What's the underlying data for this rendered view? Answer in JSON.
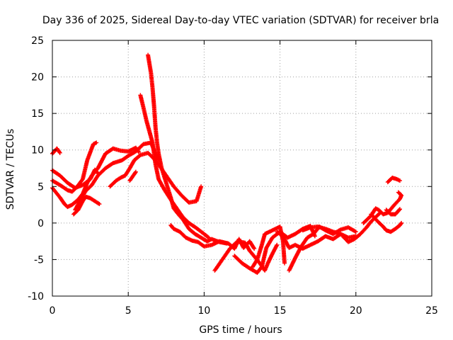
{
  "chart_data": {
    "type": "scatter",
    "title": "Day 336 of 2025, Sidereal Day-to-day VTEC variation (SDTVAR) for receiver brla",
    "xlabel": "GPS time / hours",
    "ylabel": "SDTVAR / TECUs",
    "xlim": [
      0,
      25
    ],
    "ylim": [
      -10,
      25
    ],
    "xticks": [
      0,
      5,
      10,
      15,
      20,
      25
    ],
    "yticks": [
      -10,
      -5,
      0,
      5,
      10,
      15,
      20,
      25
    ],
    "grid": true,
    "marker": "plus",
    "color": "#ff0000",
    "series": [
      {
        "name": "track-1",
        "points": [
          [
            0.0,
            9.5
          ],
          [
            0.3,
            10.2
          ],
          [
            0.5,
            9.6
          ]
        ]
      },
      {
        "name": "track-2",
        "points": [
          [
            0.0,
            7.2
          ],
          [
            0.5,
            6.5
          ],
          [
            1.0,
            5.5
          ],
          [
            1.5,
            4.8
          ],
          [
            2.0,
            5.2
          ],
          [
            2.5,
            6.0
          ],
          [
            2.8,
            7.3
          ],
          [
            3.0,
            6.8
          ]
        ]
      },
      {
        "name": "track-3",
        "points": [
          [
            0.0,
            5.8
          ],
          [
            0.5,
            5.2
          ],
          [
            1.0,
            4.5
          ],
          [
            1.3,
            4.3
          ],
          [
            1.6,
            4.9
          ],
          [
            2.0,
            6.0
          ],
          [
            2.3,
            8.6
          ],
          [
            2.7,
            10.8
          ],
          [
            2.9,
            11.0
          ]
        ]
      },
      {
        "name": "track-4",
        "points": [
          [
            0.0,
            4.8
          ],
          [
            0.5,
            3.5
          ],
          [
            0.8,
            2.6
          ],
          [
            1.0,
            2.2
          ],
          [
            1.3,
            2.5
          ],
          [
            1.7,
            3.2
          ],
          [
            2.0,
            4.0
          ],
          [
            2.3,
            5.5
          ],
          [
            2.6,
            6.5
          ],
          [
            3.0,
            7.5
          ],
          [
            3.5,
            9.5
          ],
          [
            4.0,
            10.2
          ],
          [
            4.5,
            9.9
          ],
          [
            5.0,
            9.8
          ],
          [
            5.5,
            10.3
          ],
          [
            5.7,
            9.7
          ]
        ]
      },
      {
        "name": "track-5",
        "points": [
          [
            1.4,
            1.2
          ],
          [
            1.7,
            1.8
          ],
          [
            2.0,
            3.0
          ],
          [
            2.2,
            3.6
          ],
          [
            2.5,
            3.4
          ],
          [
            2.8,
            3.0
          ],
          [
            3.1,
            2.6
          ]
        ]
      },
      {
        "name": "track-6",
        "points": [
          [
            1.5,
            1.8
          ],
          [
            1.8,
            3.0
          ],
          [
            2.2,
            4.4
          ],
          [
            2.6,
            5.2
          ],
          [
            3.0,
            6.5
          ],
          [
            3.5,
            7.5
          ],
          [
            4.0,
            8.2
          ],
          [
            4.6,
            8.6
          ],
          [
            5.0,
            9.2
          ],
          [
            5.5,
            9.8
          ],
          [
            6.0,
            10.8
          ],
          [
            6.5,
            11.0
          ],
          [
            6.8,
            9.5
          ],
          [
            7.0,
            8.6
          ]
        ]
      },
      {
        "name": "track-7",
        "points": [
          [
            3.8,
            5.0
          ],
          [
            4.2,
            5.8
          ],
          [
            4.5,
            6.2
          ],
          [
            4.8,
            6.5
          ],
          [
            5.1,
            7.5
          ],
          [
            5.4,
            8.6
          ],
          [
            5.8,
            9.3
          ],
          [
            6.3,
            9.6
          ],
          [
            6.6,
            9.0
          ],
          [
            7.0,
            8.0
          ],
          [
            7.5,
            6.5
          ],
          [
            8.0,
            5.0
          ],
          [
            8.5,
            3.8
          ],
          [
            9.0,
            2.8
          ],
          [
            9.5,
            3.0
          ],
          [
            9.8,
            5.0
          ]
        ]
      },
      {
        "name": "track-8",
        "points": [
          [
            5.1,
            5.8
          ],
          [
            5.3,
            6.4
          ],
          [
            5.5,
            7.0
          ]
        ]
      },
      {
        "name": "track-9",
        "points": [
          [
            5.8,
            17.5
          ],
          [
            6.0,
            15.8
          ],
          [
            6.2,
            14.0
          ],
          [
            6.4,
            12.5
          ],
          [
            6.6,
            11.0
          ],
          [
            6.8,
            8.0
          ],
          [
            7.0,
            6.0
          ],
          [
            7.4,
            4.5
          ],
          [
            7.8,
            3.2
          ],
          [
            8.2,
            2.0
          ],
          [
            8.6,
            0.8
          ],
          [
            9.0,
            0.0
          ],
          [
            9.5,
            -0.7
          ],
          [
            10.0,
            -1.5
          ],
          [
            10.3,
            -2.0
          ]
        ]
      },
      {
        "name": "track-10",
        "points": [
          [
            6.3,
            23.0
          ],
          [
            6.5,
            20.5
          ],
          [
            6.6,
            18.5
          ],
          [
            6.7,
            16.0
          ],
          [
            6.8,
            13.0
          ],
          [
            6.9,
            11.0
          ],
          [
            7.0,
            9.5
          ],
          [
            7.2,
            7.5
          ],
          [
            7.5,
            5.5
          ],
          [
            7.8,
            3.5
          ],
          [
            8.0,
            2.0
          ],
          [
            8.3,
            1.2
          ],
          [
            8.6,
            0.5
          ],
          [
            9.0,
            -0.8
          ],
          [
            9.4,
            -1.5
          ],
          [
            9.8,
            -2.0
          ],
          [
            10.2,
            -2.5
          ],
          [
            10.5,
            -2.2
          ],
          [
            11.0,
            -2.6
          ],
          [
            11.5,
            -2.8
          ]
        ]
      },
      {
        "name": "track-11",
        "points": [
          [
            7.8,
            -0.3
          ],
          [
            8.0,
            -0.8
          ],
          [
            8.4,
            -1.2
          ],
          [
            8.8,
            -2.0
          ],
          [
            9.2,
            -2.4
          ],
          [
            9.6,
            -2.6
          ],
          [
            10.0,
            -3.2
          ],
          [
            10.5,
            -3.0
          ],
          [
            11.0,
            -2.5
          ],
          [
            11.6,
            -2.8
          ],
          [
            12.0,
            -3.5
          ],
          [
            12.3,
            -2.2
          ],
          [
            12.6,
            -3.4
          ],
          [
            13.0,
            -2.5
          ],
          [
            13.3,
            -3.5
          ]
        ]
      },
      {
        "name": "track-12",
        "points": [
          [
            10.7,
            -6.5
          ],
          [
            11.2,
            -5.0
          ],
          [
            11.7,
            -3.5
          ],
          [
            12.2,
            -2.5
          ],
          [
            12.7,
            -2.7
          ],
          [
            13.0,
            -3.8
          ],
          [
            13.4,
            -4.8
          ],
          [
            13.7,
            -5.6
          ],
          [
            14.0,
            -6.5
          ],
          [
            14.2,
            -5.5
          ],
          [
            14.5,
            -4.2
          ],
          [
            14.8,
            -3.0
          ]
        ]
      },
      {
        "name": "track-13",
        "points": [
          [
            12.0,
            -4.5
          ],
          [
            12.5,
            -5.5
          ],
          [
            13.0,
            -6.2
          ],
          [
            13.5,
            -6.8
          ],
          [
            13.8,
            -6.0
          ],
          [
            14.1,
            -3.4
          ],
          [
            14.5,
            -2.0
          ],
          [
            15.0,
            -1.2
          ],
          [
            15.5,
            -2.0
          ],
          [
            16.0,
            -1.5
          ],
          [
            16.5,
            -0.8
          ],
          [
            17.0,
            -0.4
          ],
          [
            17.3,
            -1.8
          ]
        ]
      },
      {
        "name": "track-14",
        "points": [
          [
            13.2,
            -6.0
          ],
          [
            13.5,
            -5.0
          ],
          [
            13.8,
            -3.0
          ],
          [
            14.0,
            -1.5
          ],
          [
            14.5,
            -1.0
          ],
          [
            15.0,
            -0.5
          ],
          [
            15.2,
            -2.5
          ],
          [
            15.3,
            -5.5
          ]
        ]
      },
      {
        "name": "track-15",
        "points": [
          [
            14.8,
            -1.2
          ],
          [
            15.2,
            -1.8
          ],
          [
            15.6,
            -3.4
          ],
          [
            16.0,
            -3.0
          ],
          [
            16.5,
            -3.5
          ],
          [
            17.0,
            -3.0
          ],
          [
            17.5,
            -2.5
          ],
          [
            18.0,
            -1.8
          ],
          [
            18.5,
            -2.2
          ],
          [
            19.0,
            -1.5
          ],
          [
            19.5,
            -2.0
          ],
          [
            20.0,
            -1.8
          ]
        ]
      },
      {
        "name": "track-16",
        "points": [
          [
            15.6,
            -6.5
          ],
          [
            16.0,
            -4.8
          ],
          [
            16.4,
            -3.2
          ],
          [
            16.8,
            -2.0
          ],
          [
            17.2,
            -1.5
          ],
          [
            17.6,
            -0.5
          ],
          [
            18.0,
            -1.0
          ],
          [
            18.5,
            -1.5
          ],
          [
            19.0,
            -0.9
          ],
          [
            19.5,
            -0.6
          ],
          [
            20.0,
            -1.2
          ]
        ]
      },
      {
        "name": "track-17",
        "points": [
          [
            16.5,
            -1.0
          ],
          [
            17.0,
            -0.6
          ],
          [
            17.5,
            -0.5
          ],
          [
            18.0,
            -0.8
          ],
          [
            18.5,
            -1.2
          ],
          [
            19.0,
            -1.5
          ],
          [
            19.5,
            -2.6
          ],
          [
            19.9,
            -2.2
          ],
          [
            20.3,
            -1.5
          ],
          [
            20.7,
            -0.6
          ],
          [
            21.0,
            0.2
          ],
          [
            21.3,
            0.8
          ],
          [
            21.6,
            1.4
          ]
        ]
      },
      {
        "name": "track-18",
        "points": [
          [
            20.5,
            0.0
          ],
          [
            21.0,
            1.0
          ],
          [
            21.3,
            2.0
          ],
          [
            21.5,
            1.8
          ],
          [
            21.8,
            1.2
          ],
          [
            22.1,
            1.4
          ],
          [
            22.5,
            2.4
          ],
          [
            22.9,
            3.3
          ],
          [
            23.0,
            3.8
          ],
          [
            22.8,
            4.2
          ]
        ]
      },
      {
        "name": "track-19",
        "points": [
          [
            21.0,
            1.2
          ],
          [
            21.4,
            0.3
          ],
          [
            21.8,
            -0.5
          ],
          [
            22.0,
            -1.0
          ],
          [
            22.3,
            -1.2
          ],
          [
            22.6,
            -0.8
          ],
          [
            22.9,
            -0.3
          ],
          [
            23.0,
            0.0
          ]
        ]
      },
      {
        "name": "track-20",
        "points": [
          [
            22.0,
            1.8
          ],
          [
            22.3,
            1.2
          ],
          [
            22.6,
            1.2
          ],
          [
            22.9,
            1.9
          ]
        ]
      },
      {
        "name": "track-21",
        "points": [
          [
            22.1,
            5.6
          ],
          [
            22.4,
            6.2
          ],
          [
            22.7,
            6.0
          ],
          [
            22.9,
            5.8
          ]
        ]
      }
    ]
  }
}
